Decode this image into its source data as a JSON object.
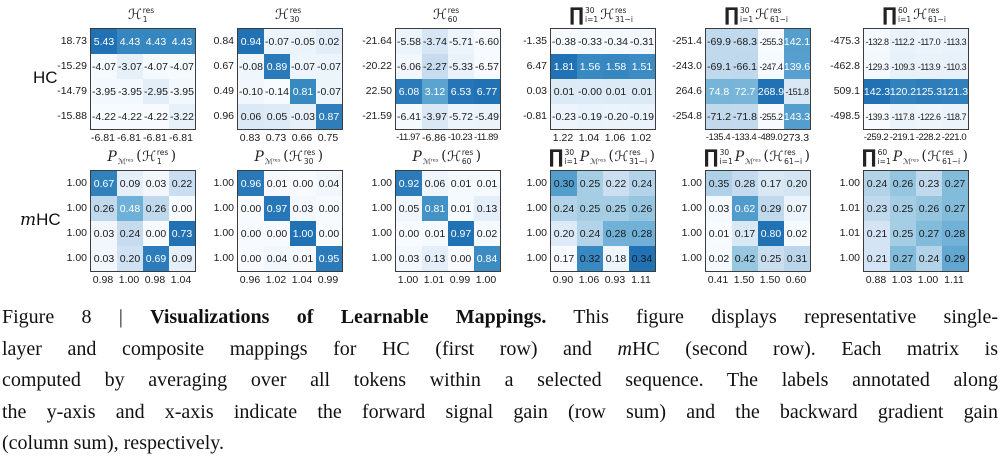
{
  "colors": {
    "cell_min": "#f7fbff",
    "cell_max": "#2171b5",
    "matrix_border": "#3c3c3c",
    "text_dark": "#1a1a1a",
    "text_light": "#ffffff"
  },
  "figure": {
    "row_labels": [
      {
        "text": "HC",
        "segments": [
          [
            "r",
            "HC"
          ]
        ]
      },
      {
        "text": "mHC",
        "segments": [
          [
            "i",
            "m"
          ],
          [
            "r",
            "HC"
          ]
        ]
      }
    ]
  },
  "chart_data": [
    {
      "type": "heatmap",
      "group": "HC",
      "title_text": "H_1^res",
      "title_tokens": [
        [
          "v",
          "ℋ"
        ],
        [
          "ss",
          "res",
          "1"
        ]
      ],
      "row_labels": [
        "18.73",
        "-15.29",
        "-14.79",
        "-15.88"
      ],
      "col_labels": [
        "-6.81",
        "-6.81",
        "-6.81",
        "-6.81"
      ],
      "labels": [
        [
          "5.43",
          "4.43",
          "4.43",
          "4.43"
        ],
        [
          "-4.07",
          "-3.07",
          "-4.07",
          "-4.07"
        ],
        [
          "-3.95",
          "-3.95",
          "-2.95",
          "-3.95"
        ],
        [
          "-4.22",
          "-4.22",
          "-4.22",
          "-3.22"
        ]
      ],
      "values": [
        [
          5.43,
          4.43,
          4.43,
          4.43
        ],
        [
          -4.07,
          -3.07,
          -4.07,
          -4.07
        ],
        [
          -3.95,
          -3.95,
          -2.95,
          -3.95
        ],
        [
          -4.22,
          -4.22,
          -4.22,
          -3.22
        ]
      ]
    },
    {
      "type": "heatmap",
      "group": "HC",
      "title_text": "H_30^res",
      "title_tokens": [
        [
          "v",
          "ℋ"
        ],
        [
          "ss",
          "res",
          "30"
        ]
      ],
      "row_labels": [
        "0.84",
        "0.67",
        "0.49",
        "0.96"
      ],
      "col_labels": [
        "0.83",
        "0.73",
        "0.66",
        "0.75"
      ],
      "labels": [
        [
          "0.94",
          "-0.07",
          "-0.05",
          "0.02"
        ],
        [
          "-0.08",
          "0.89",
          "-0.07",
          "-0.07"
        ],
        [
          "-0.10",
          "-0.14",
          "0.81",
          "-0.07"
        ],
        [
          "0.06",
          "0.05",
          "-0.03",
          "0.87"
        ]
      ],
      "values": [
        [
          0.94,
          -0.07,
          -0.05,
          0.02
        ],
        [
          -0.08,
          0.89,
          -0.07,
          -0.07
        ],
        [
          -0.1,
          -0.14,
          0.81,
          -0.07
        ],
        [
          0.06,
          0.05,
          -0.03,
          0.87
        ]
      ]
    },
    {
      "type": "heatmap",
      "group": "HC",
      "title_text": "H_60^res",
      "title_tokens": [
        [
          "v",
          "ℋ"
        ],
        [
          "ss",
          "res",
          "60"
        ]
      ],
      "row_labels": [
        "-21.64",
        "-20.22",
        "22.50",
        "-21.59"
      ],
      "col_labels": [
        "-11.97",
        "-6.86",
        "-10.23",
        "-11.89"
      ],
      "labels": [
        [
          "-5.58",
          "-3.74",
          "-5.71",
          "-6.60"
        ],
        [
          "-6.06",
          "-2.27",
          "-5.33",
          "-6.57"
        ],
        [
          "6.08",
          "3.12",
          "6.53",
          "6.77"
        ],
        [
          "-6.41",
          "-3.97",
          "-5.72",
          "-5.49"
        ]
      ],
      "values": [
        [
          -5.58,
          -3.74,
          -5.71,
          -6.6
        ],
        [
          -6.06,
          -2.27,
          -5.33,
          -6.57
        ],
        [
          6.08,
          3.12,
          6.53,
          6.77
        ],
        [
          -6.41,
          -3.97,
          -5.72,
          -5.49
        ]
      ]
    },
    {
      "type": "heatmap",
      "group": "HC",
      "title_text": "prod_{i=1}^{30} H_{31-i}^res",
      "title_tokens": [
        [
          "prod",
          "30",
          "i=1"
        ],
        [
          "v",
          "ℋ"
        ],
        [
          "ss",
          "res",
          "31−i"
        ]
      ],
      "row_labels": [
        "-1.35",
        "6.47",
        "0.03",
        "-0.81"
      ],
      "col_labels": [
        "1.22",
        "1.04",
        "1.06",
        "1.02"
      ],
      "labels": [
        [
          "-0.38",
          "-0.33",
          "-0.34",
          "-0.31"
        ],
        [
          "1.81",
          "1.56",
          "1.58",
          "1.51"
        ],
        [
          "0.01",
          "-0.00",
          "0.01",
          "0.01"
        ],
        [
          "-0.23",
          "-0.19",
          "-0.20",
          "-0.19"
        ]
      ],
      "values": [
        [
          -0.38,
          -0.33,
          -0.34,
          -0.31
        ],
        [
          1.81,
          1.56,
          1.58,
          1.51
        ],
        [
          0.01,
          -0.0,
          0.01,
          0.01
        ],
        [
          -0.23,
          -0.19,
          -0.2,
          -0.19
        ]
      ]
    },
    {
      "type": "heatmap",
      "group": "HC",
      "title_text": "prod_{i=1}^{30} H_{61-i}^res",
      "title_tokens": [
        [
          "prod",
          "30",
          "i=1"
        ],
        [
          "v",
          "ℋ"
        ],
        [
          "ss",
          "res",
          "61−i"
        ]
      ],
      "row_labels": [
        "-251.4",
        "-243.0",
        "264.6",
        "-254.8"
      ],
      "col_labels": [
        "-135.4",
        "-133.4",
        "-489.0",
        "273.3"
      ],
      "labels": [
        [
          "-69.9",
          "-68.3",
          "-255.3",
          "142.1"
        ],
        [
          "-69.1",
          "-66.1",
          "-247.4",
          "139.6"
        ],
        [
          "74.8",
          "72.7",
          "268.9",
          "-151.8"
        ],
        [
          "-71.2",
          "-71.8",
          "-255.2",
          "143.3"
        ]
      ],
      "values": [
        [
          -69.9,
          -68.3,
          -255.3,
          142.1
        ],
        [
          -69.1,
          -66.1,
          -247.4,
          139.6
        ],
        [
          74.8,
          72.7,
          268.9,
          -151.8
        ],
        [
          -71.2,
          -71.8,
          -255.2,
          143.3
        ]
      ]
    },
    {
      "type": "heatmap",
      "group": "HC",
      "title_text": "prod_{i=1}^{60} H_{61-i}^res",
      "title_tokens": [
        [
          "prod",
          "60",
          "i=1"
        ],
        [
          "v",
          "ℋ"
        ],
        [
          "ss",
          "res",
          "61−i"
        ]
      ],
      "row_labels": [
        "-475.3",
        "-462.8",
        "509.1",
        "-498.5"
      ],
      "col_labels": [
        "-259.2",
        "-219.1",
        "-228.2",
        "-221.0"
      ],
      "labels": [
        [
          "-132.8",
          "-112.2",
          "-117.0",
          "-113.3"
        ],
        [
          "-129.3",
          "-109.3",
          "-113.9",
          "-110.3"
        ],
        [
          "142.3",
          "120.2",
          "125.3",
          "121.3"
        ],
        [
          "-139.3",
          "-117.8",
          "-122.6",
          "-118.7"
        ]
      ],
      "values": [
        [
          -132.8,
          -112.2,
          -117.0,
          -113.3
        ],
        [
          -129.3,
          -109.3,
          -113.9,
          -110.3
        ],
        [
          142.3,
          120.2,
          125.3,
          121.3
        ],
        [
          -139.3,
          -117.8,
          -122.6,
          -118.7
        ]
      ]
    },
    {
      "type": "heatmap",
      "group": "mHC",
      "title_text": "P_M^res(H_1^res)",
      "title_tokens": [
        [
          "vi",
          "P"
        ],
        [
          "ss",
          "",
          "ℳʳᵉˢ"
        ],
        [
          "t",
          "("
        ],
        [
          "v",
          "ℋ"
        ],
        [
          "ss",
          "res",
          "1"
        ],
        [
          "t",
          ")"
        ]
      ],
      "row_labels": [
        "1.00",
        "1.00",
        "1.00",
        "1.00"
      ],
      "col_labels": [
        "0.98",
        "1.00",
        "0.98",
        "1.04"
      ],
      "labels": [
        [
          "0.67",
          "0.09",
          "0.03",
          "0.22"
        ],
        [
          "0.26",
          "0.48",
          "0.26",
          "0.00"
        ],
        [
          "0.03",
          "0.24",
          "0.00",
          "0.73"
        ],
        [
          "0.03",
          "0.20",
          "0.69",
          "0.09"
        ]
      ],
      "values": [
        [
          0.67,
          0.09,
          0.03,
          0.22
        ],
        [
          0.26,
          0.48,
          0.26,
          0.0
        ],
        [
          0.03,
          0.24,
          0.0,
          0.73
        ],
        [
          0.03,
          0.2,
          0.69,
          0.09
        ]
      ]
    },
    {
      "type": "heatmap",
      "group": "mHC",
      "title_text": "P_M^res(H_30^res)",
      "title_tokens": [
        [
          "vi",
          "P"
        ],
        [
          "ss",
          "",
          "ℳʳᵉˢ"
        ],
        [
          "t",
          "("
        ],
        [
          "v",
          "ℋ"
        ],
        [
          "ss",
          "res",
          "30"
        ],
        [
          "t",
          ")"
        ]
      ],
      "row_labels": [
        "1.00",
        "1.00",
        "1.00",
        "1.00"
      ],
      "col_labels": [
        "0.96",
        "1.02",
        "1.04",
        "0.99"
      ],
      "labels": [
        [
          "0.96",
          "0.01",
          "0.00",
          "0.04"
        ],
        [
          "0.00",
          "0.97",
          "0.03",
          "0.00"
        ],
        [
          "0.00",
          "0.00",
          "1.00",
          "0.00"
        ],
        [
          "0.00",
          "0.04",
          "0.01",
          "0.95"
        ]
      ],
      "values": [
        [
          0.96,
          0.01,
          0.0,
          0.04
        ],
        [
          0.0,
          0.97,
          0.03,
          0.0
        ],
        [
          0.0,
          0.0,
          1.0,
          0.0
        ],
        [
          0.0,
          0.04,
          0.01,
          0.95
        ]
      ]
    },
    {
      "type": "heatmap",
      "group": "mHC",
      "title_text": "P_M^res(H_60^res)",
      "title_tokens": [
        [
          "vi",
          "P"
        ],
        [
          "ss",
          "",
          "ℳʳᵉˢ"
        ],
        [
          "t",
          "("
        ],
        [
          "v",
          "ℋ"
        ],
        [
          "ss",
          "res",
          "60"
        ],
        [
          "t",
          ")"
        ]
      ],
      "row_labels": [
        "1.00",
        "1.00",
        "1.00",
        "1.00"
      ],
      "col_labels": [
        "1.00",
        "1.01",
        "0.99",
        "1.00"
      ],
      "labels": [
        [
          "0.92",
          "0.06",
          "0.01",
          "0.01"
        ],
        [
          "0.05",
          "0.81",
          "0.01",
          "0.13"
        ],
        [
          "0.00",
          "0.01",
          "0.97",
          "0.02"
        ],
        [
          "0.03",
          "0.13",
          "0.00",
          "0.84"
        ]
      ],
      "values": [
        [
          0.92,
          0.06,
          0.01,
          0.01
        ],
        [
          0.05,
          0.81,
          0.01,
          0.13
        ],
        [
          0.0,
          0.01,
          0.97,
          0.02
        ],
        [
          0.03,
          0.13,
          0.0,
          0.84
        ]
      ]
    },
    {
      "type": "heatmap",
      "group": "mHC",
      "title_text": "prod_{i=1}^{30} P_M^res(H_{31-i}^res)",
      "title_tokens": [
        [
          "prod",
          "30",
          "i=1"
        ],
        [
          "vi",
          "P"
        ],
        [
          "ss",
          "",
          "ℳʳᵉˢ"
        ],
        [
          "t",
          "("
        ],
        [
          "v",
          "ℋ"
        ],
        [
          "ss",
          "res",
          "31−i"
        ],
        [
          "t",
          ")"
        ]
      ],
      "row_labels": [
        "1.00",
        "1.00",
        "1.00",
        "1.00"
      ],
      "col_labels": [
        "0.90",
        "1.06",
        "0.93",
        "1.11"
      ],
      "labels": [
        [
          "0.30",
          "0.25",
          "0.22",
          "0.24"
        ],
        [
          "0.24",
          "0.25",
          "0.25",
          "0.26"
        ],
        [
          "0.20",
          "0.24",
          "0.28",
          "0.28"
        ],
        [
          "0.17",
          "0.32",
          "0.18",
          "0.34"
        ]
      ],
      "values": [
        [
          0.3,
          0.25,
          0.22,
          0.24
        ],
        [
          0.24,
          0.25,
          0.25,
          0.26
        ],
        [
          0.2,
          0.24,
          0.28,
          0.28
        ],
        [
          0.17,
          0.32,
          0.18,
          0.34
        ]
      ],
      "force_dark_text": true
    },
    {
      "type": "heatmap",
      "group": "mHC",
      "title_text": "prod_{i=1}^{30} P_M^res(H_{61-i}^res)",
      "title_tokens": [
        [
          "prod",
          "30",
          "i=1"
        ],
        [
          "vi",
          "P"
        ],
        [
          "ss",
          "",
          "ℳʳᵉˢ"
        ],
        [
          "t",
          "("
        ],
        [
          "v",
          "ℋ"
        ],
        [
          "ss",
          "res",
          "61−i"
        ],
        [
          "t",
          ")"
        ]
      ],
      "row_labels": [
        "1.00",
        "1.00",
        "1.00",
        "1.00"
      ],
      "col_labels": [
        "0.41",
        "1.50",
        "1.50",
        "0.60"
      ],
      "labels": [
        [
          "0.35",
          "0.28",
          "0.17",
          "0.20"
        ],
        [
          "0.03",
          "0.62",
          "0.29",
          "0.07"
        ],
        [
          "0.01",
          "0.17",
          "0.80",
          "0.02"
        ],
        [
          "0.02",
          "0.42",
          "0.25",
          "0.31"
        ]
      ],
      "values": [
        [
          0.35,
          0.28,
          0.17,
          0.2
        ],
        [
          0.03,
          0.62,
          0.29,
          0.07
        ],
        [
          0.01,
          0.17,
          0.8,
          0.02
        ],
        [
          0.02,
          0.42,
          0.25,
          0.31
        ]
      ]
    },
    {
      "type": "heatmap",
      "group": "mHC",
      "title_text": "prod_{i=1}^{60} P_M^res(H_{61-i}^res)",
      "title_tokens": [
        [
          "prod",
          "60",
          "i=1"
        ],
        [
          "vi",
          "P"
        ],
        [
          "ss",
          "",
          "ℳʳᵉˢ"
        ],
        [
          "t",
          "("
        ],
        [
          "v",
          "ℋ"
        ],
        [
          "ss",
          "res",
          "61−i"
        ],
        [
          "t",
          ")"
        ]
      ],
      "row_labels": [
        "1.00",
        "1.01",
        "1.01",
        "1.00"
      ],
      "col_labels": [
        "0.88",
        "1.03",
        "1.00",
        "1.11"
      ],
      "labels": [
        [
          "0.24",
          "0.26",
          "0.23",
          "0.27"
        ],
        [
          "0.23",
          "0.25",
          "0.26",
          "0.27"
        ],
        [
          "0.21",
          "0.25",
          "0.27",
          "0.28"
        ],
        [
          "0.21",
          "0.27",
          "0.24",
          "0.29"
        ]
      ],
      "values": [
        [
          0.24,
          0.26,
          0.23,
          0.27
        ],
        [
          0.23,
          0.25,
          0.26,
          0.27
        ],
        [
          0.21,
          0.25,
          0.27,
          0.28
        ],
        [
          0.21,
          0.27,
          0.24,
          0.29
        ]
      ],
      "color_domain": [
        0.17,
        0.34
      ],
      "force_dark_text": true
    }
  ],
  "caption": {
    "lines": [
      {
        "justify": true,
        "segments": [
          [
            "r",
            "Figure 8 | "
          ],
          [
            "b",
            "Visualizations of Learnable Mappings."
          ],
          [
            "r",
            " This figure displays representative single-"
          ]
        ]
      },
      {
        "justify": true,
        "segments": [
          [
            "r",
            "layer and composite mappings for HC (first row) and "
          ],
          [
            "i",
            "m"
          ],
          [
            "r",
            "HC (second row). Each matrix is"
          ]
        ]
      },
      {
        "justify": true,
        "segments": [
          [
            "r",
            "computed by averaging over all tokens within a selected sequence. The labels annotated along"
          ]
        ]
      },
      {
        "justify": true,
        "segments": [
          [
            "r",
            "the y-axis and x-axis indicate the forward signal gain (row sum) and the backward gradient gain"
          ]
        ]
      },
      {
        "justify": false,
        "segments": [
          [
            "r",
            "(column sum), respectively."
          ]
        ]
      }
    ]
  }
}
